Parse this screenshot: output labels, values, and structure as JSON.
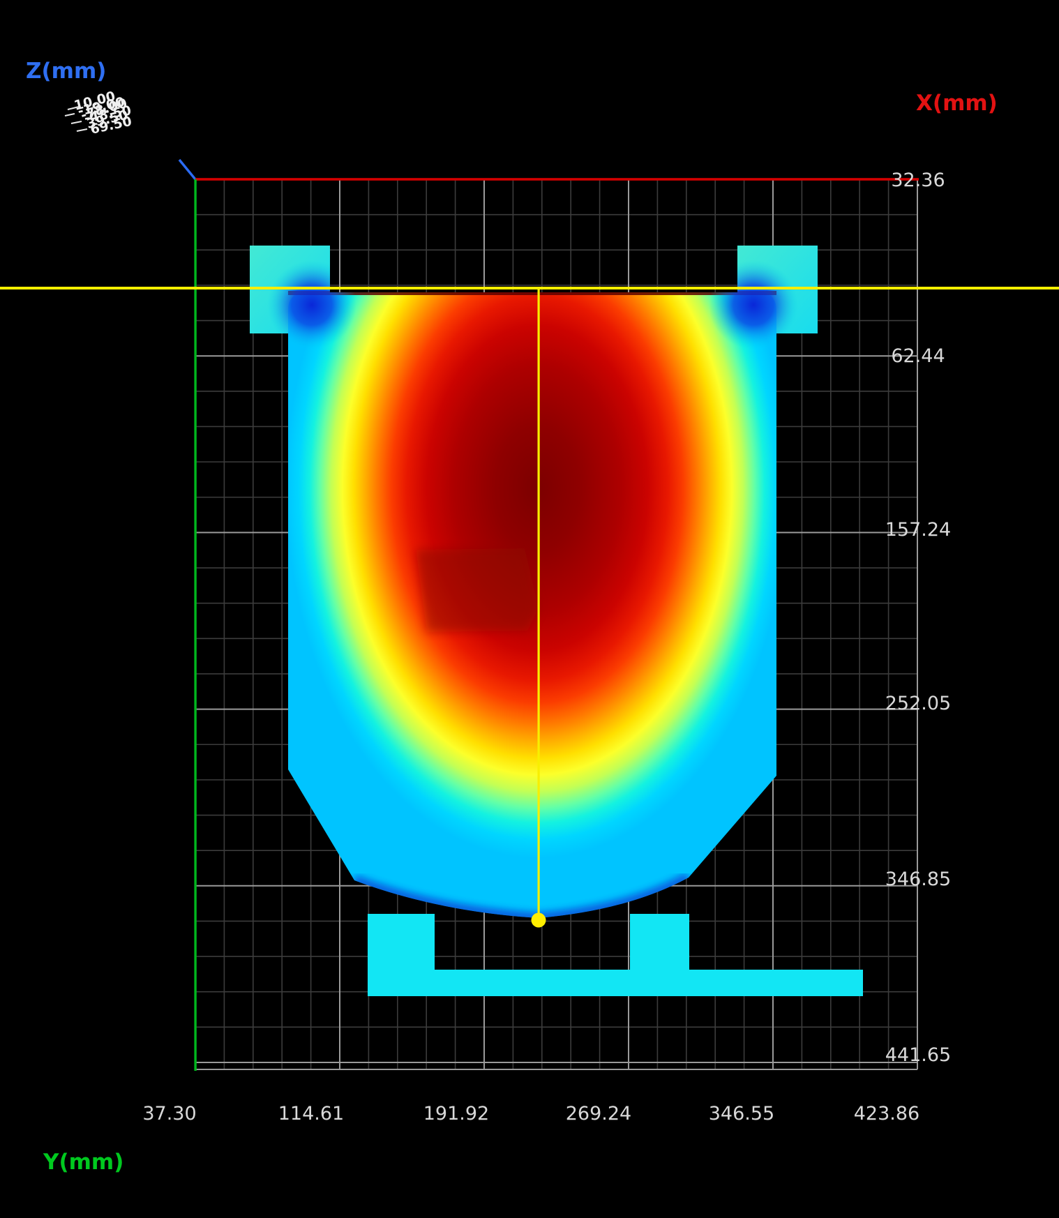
{
  "chart_data": {
    "type": "heatmap",
    "title": "",
    "description": "3D scan depth map, top view of a vessel-shaped part rendered with a jet colormap over a measurement grid",
    "axes": {
      "x": {
        "label": "X(mm)",
        "color": "#e31212",
        "orientation": "vertical-right",
        "tick_labels": [
          "32.36",
          "62.44",
          "157.24",
          "252.05",
          "346.85",
          "441.65"
        ]
      },
      "y": {
        "label": "Y(mm)",
        "color": "#00c91f",
        "orientation": "horizontal-bottom",
        "tick_labels": [
          "37.30",
          "114.61",
          "191.92",
          "269.24",
          "346.55",
          "423.86"
        ]
      },
      "z": {
        "label": "Z(mm)",
        "color": "#2f6ff2",
        "orientation": "out-of-plane-overlapping",
        "tick_labels": [
          "-78.00",
          "-48.50",
          "-19.00",
          "10.00",
          "39.50",
          "69.50"
        ]
      }
    },
    "grid": {
      "minor_color": "#3c3c3c",
      "major_color": "#9a9a9a",
      "shown": true
    },
    "colormap_jet": [
      "#7c0000",
      "#b00000",
      "#e81800",
      "#ff7600",
      "#ffae00",
      "#ffdf00",
      "#fcff2a",
      "#c3ff55",
      "#63ffa7",
      "#14f2e0",
      "#00c4ff",
      "#0a2fd0"
    ],
    "crosshair": {
      "color": "#f8ef00",
      "marker": "filled-dot"
    },
    "axis_line_colors": {
      "x_axis_line": "#d40000",
      "y_axis_line": "#00b81e",
      "z_axis_line": "#2b6bf3"
    }
  }
}
